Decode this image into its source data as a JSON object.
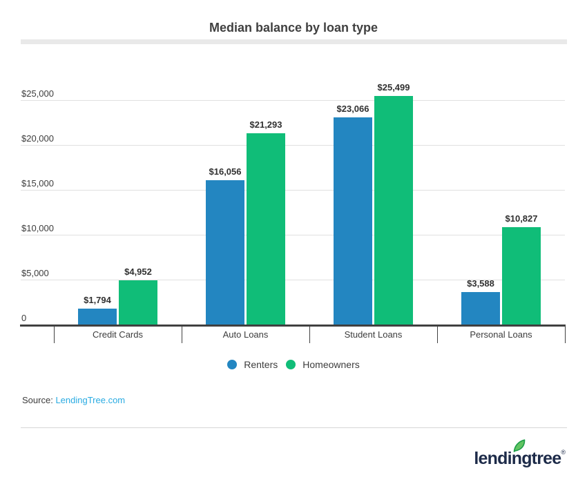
{
  "chart_data": {
    "type": "bar",
    "title": "Median balance by loan type",
    "categories": [
      "Credit Cards",
      "Auto Loans",
      "Student Loans",
      "Personal Loans"
    ],
    "series": [
      {
        "name": "Renters",
        "color": "#2386c1",
        "values": [
          1794,
          16056,
          23066,
          3588
        ],
        "labels": [
          "$1,794",
          "$16,056",
          "$23,066",
          "$3,588"
        ]
      },
      {
        "name": "Homeowners",
        "color": "#10bd78",
        "values": [
          4952,
          21293,
          25499,
          10827
        ],
        "labels": [
          "$4,952",
          "$21,293",
          "$25,499",
          "$10,827"
        ]
      }
    ],
    "y_ticks": [
      {
        "label": "$25,000",
        "value": 25000
      },
      {
        "label": "$20,000",
        "value": 20000
      },
      {
        "label": "$15,000",
        "value": 15000
      },
      {
        "label": "$10,000",
        "value": 10000
      },
      {
        "label": "$5,000",
        "value": 5000
      },
      {
        "label": "0",
        "value": 0
      }
    ],
    "ylim": [
      0,
      26000
    ],
    "grid": true,
    "legend_position": "bottom"
  },
  "source": {
    "prefix": "Source:",
    "link_text": "LendingTree.com",
    "link_color": "#29abe2",
    "text_color": "#3c3c3c"
  },
  "logo": {
    "text": "lendingtree",
    "registered": "®",
    "text_color": "#1d2b49",
    "leaf_fill": "#62c462",
    "leaf_stroke": "#1d9e48"
  }
}
